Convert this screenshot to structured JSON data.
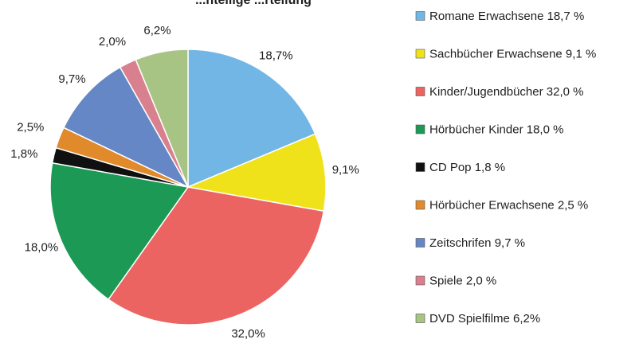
{
  "chart_data": {
    "type": "pie",
    "title_fragment": "...nteilige ...rteilung",
    "start_angle_deg": 0,
    "direction": "clockwise",
    "slices": [
      {
        "label": "Romane Erwachsene 18,7 %",
        "value": 18.7,
        "value_label": "18,7%",
        "color": "#72b6e6"
      },
      {
        "label": "Sachbücher Erwachsene 9,1 %",
        "value": 9.1,
        "value_label": "9,1%",
        "color": "#efe21a"
      },
      {
        "label": "Kinder/Jugendbücher 32,0 %",
        "value": 32.0,
        "value_label": "32,0%",
        "color": "#ec6461"
      },
      {
        "label": "Hörbücher Kinder 18,0 %",
        "value": 18.0,
        "value_label": "18,0%",
        "color": "#1c9a55"
      },
      {
        "label": "CD Pop 1,8 %",
        "value": 1.8,
        "value_label": "1,8%",
        "color": "#101010"
      },
      {
        "label": "Hörbücher Erwachsene 2,5 %",
        "value": 2.5,
        "value_label": "2,5%",
        "color": "#e08a2c"
      },
      {
        "label": "Zeitschrifen 9,7 %",
        "value": 9.7,
        "value_label": "9,7%",
        "color": "#6687c5"
      },
      {
        "label": "Spiele 2,0 %",
        "value": 2.0,
        "value_label": "2,0%",
        "color": "#d9808f"
      },
      {
        "label": "DVD Spielfilme 6,2%",
        "value": 6.2,
        "value_label": "6,2%",
        "color": "#a7c484"
      }
    ],
    "legend_position": "right"
  }
}
